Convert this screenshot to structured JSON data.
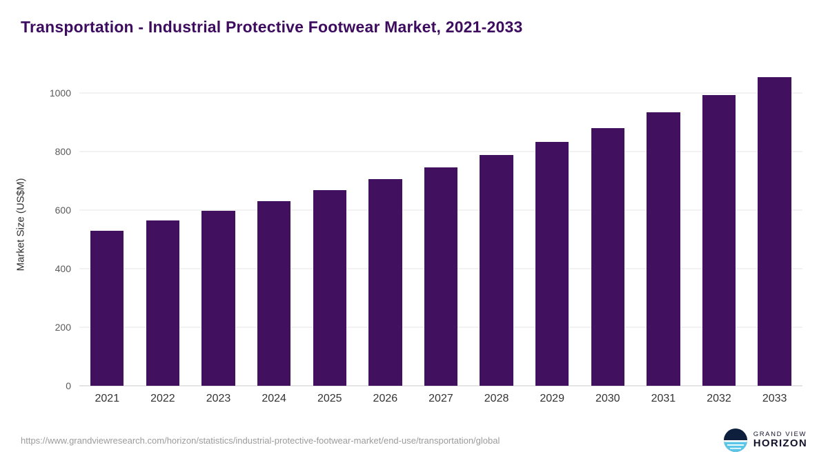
{
  "title": "Transportation - Industrial Protective Footwear Market, 2021-2033",
  "chart_data": {
    "type": "bar",
    "categories": [
      "2021",
      "2022",
      "2023",
      "2024",
      "2025",
      "2026",
      "2027",
      "2028",
      "2029",
      "2030",
      "2031",
      "2032",
      "2033"
    ],
    "values": [
      530,
      565,
      598,
      632,
      668,
      706,
      746,
      788,
      833,
      881,
      935,
      993,
      1055
    ],
    "title": "Transportation - Industrial Protective Footwear Market, 2021-2033",
    "xlabel": "",
    "ylabel": "Market Size (US$M)",
    "ylim": [
      0,
      1100
    ],
    "yticks": [
      0,
      200,
      400,
      600,
      800,
      1000
    ],
    "grid": true,
    "legend_position": "none",
    "bar_color": "#41105f"
  },
  "colors": {
    "title": "#3d0c5e",
    "bar": "#41105f",
    "gridline": "#e6e6e6",
    "axis_text": "#595959",
    "footer_text": "#9b9b9b",
    "logo_navy": "#0e1f3d",
    "logo_blue": "#5bc6e8"
  },
  "footer": {
    "source_url": "https://www.grandviewresearch.com/horizon/statistics/industrial-protective-footwear-market/end-use/transportation/global",
    "logo_line1": "GRAND VIEW",
    "logo_line2": "HORIZON"
  }
}
